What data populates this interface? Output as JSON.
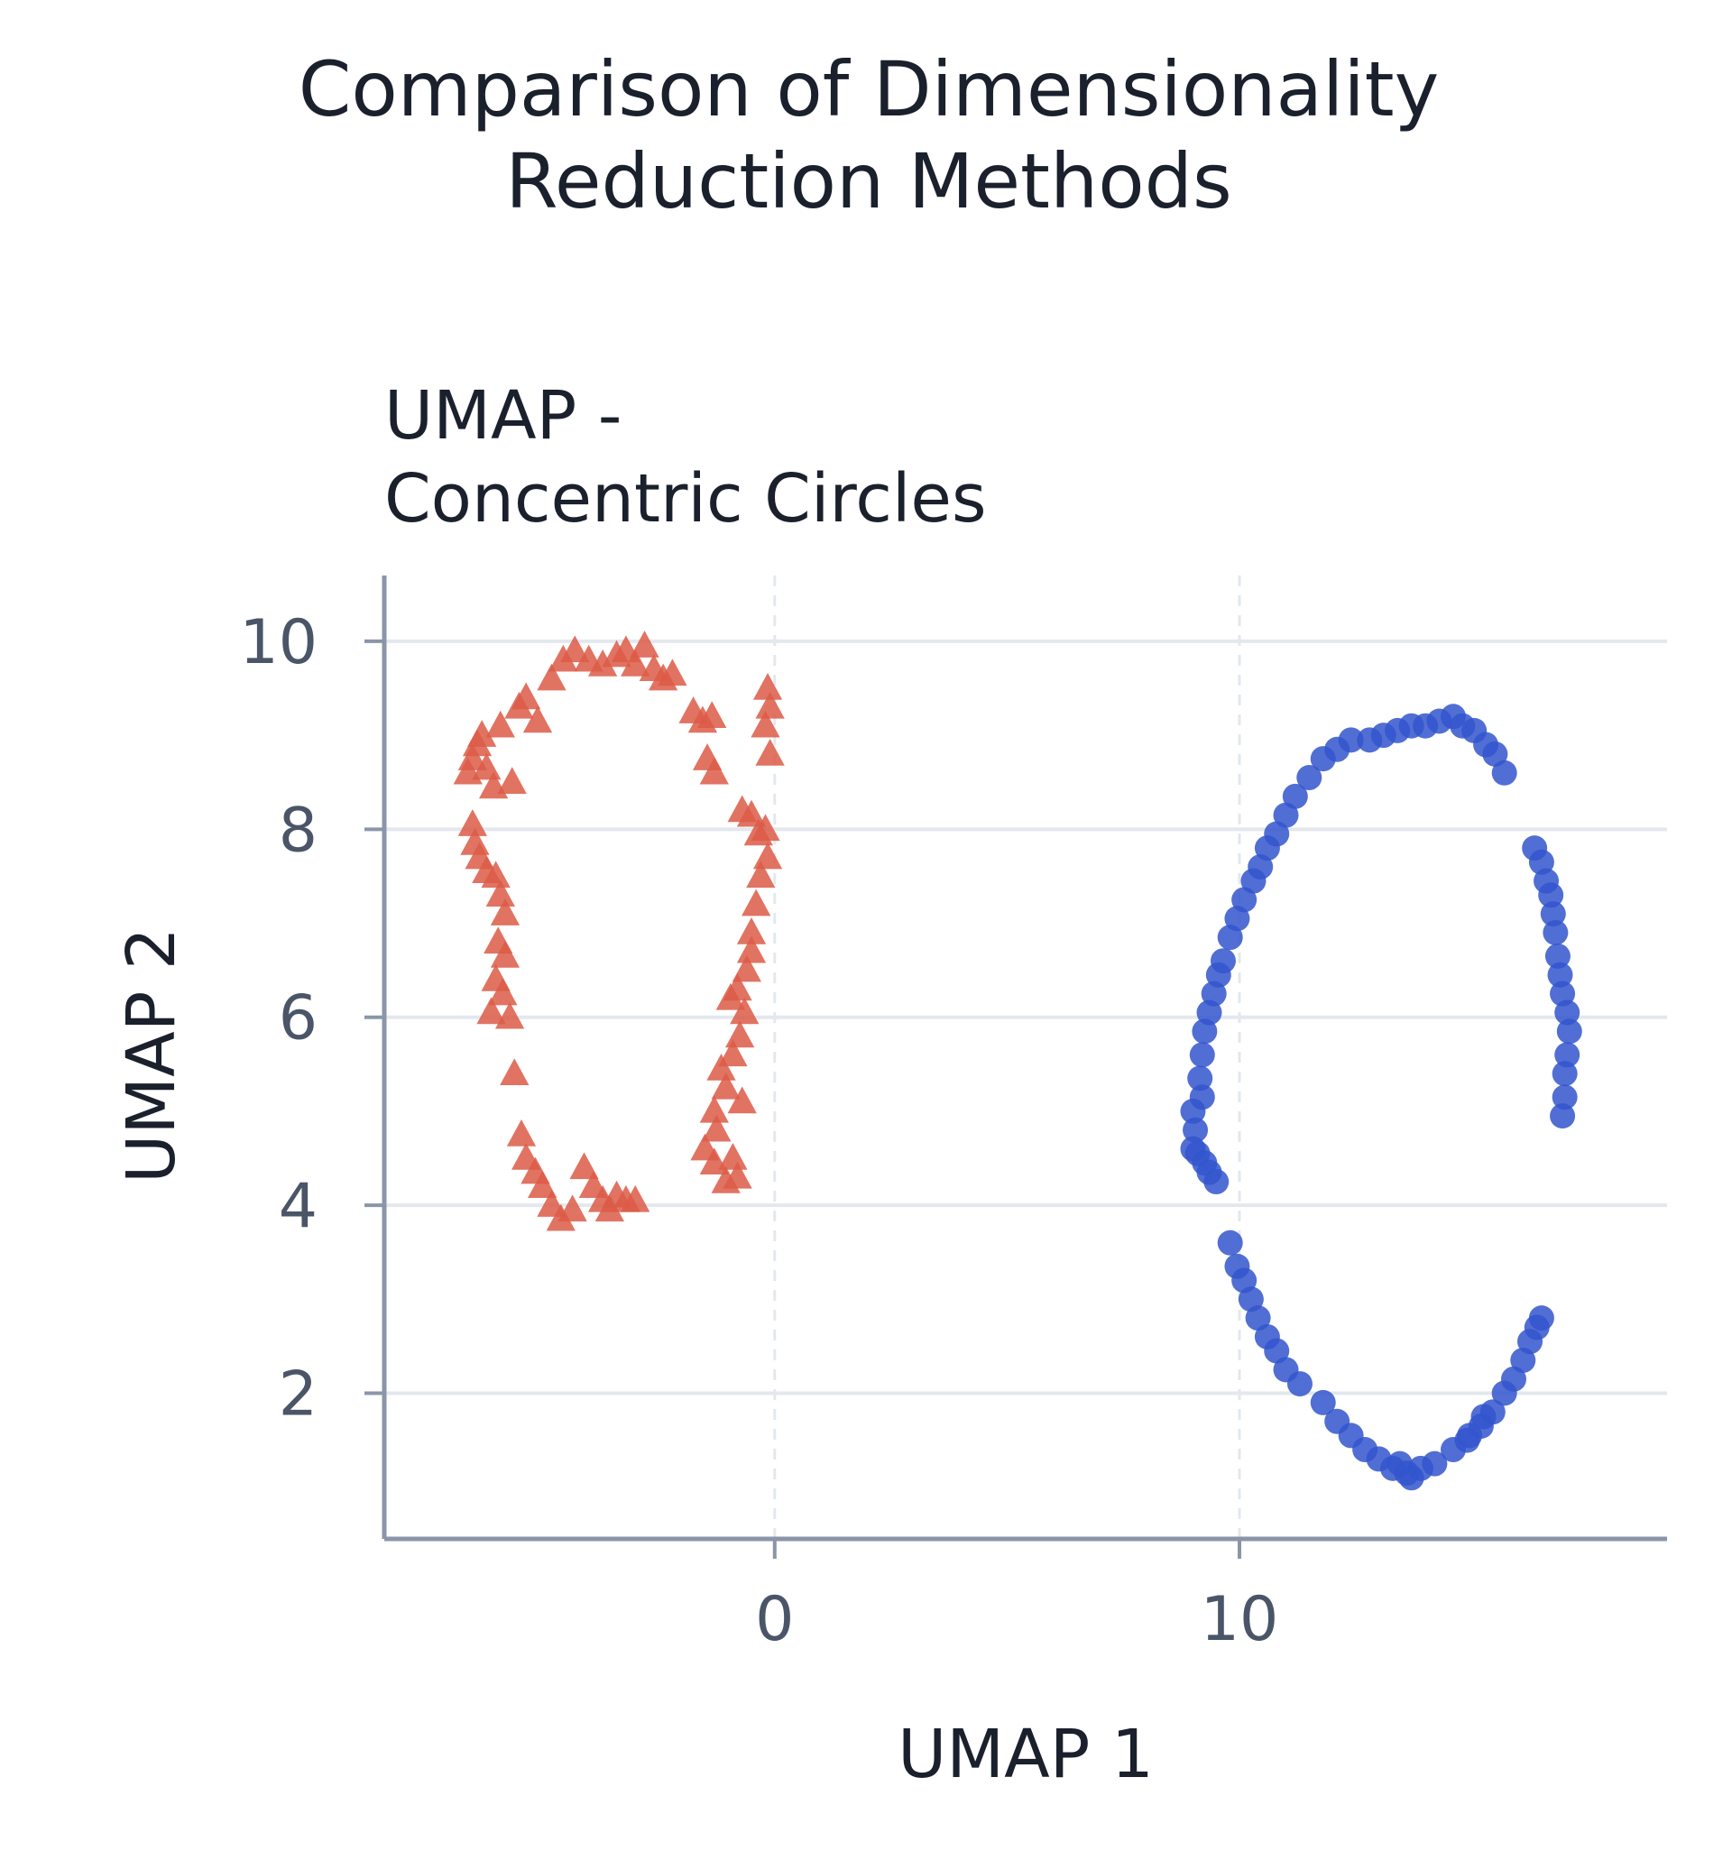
{
  "figure": {
    "suptitle": "Comparison of Dimensionality Reduction Methods",
    "suptitle_lines": [
      "Comparison of Dimensionality",
      "Reduction Methods"
    ]
  },
  "chart_data": {
    "type": "scatter",
    "title": "UMAP - Concentric Circles",
    "title_lines": [
      "UMAP -",
      "Concentric Circles"
    ],
    "xlabel": "UMAP 1",
    "ylabel": "UMAP 2",
    "xlim": [
      -8.4,
      19.2
    ],
    "ylim": [
      0.45,
      10.7
    ],
    "xticks": [
      0,
      10
    ],
    "yticks": [
      2,
      4,
      6,
      8,
      10
    ],
    "grid": {
      "x": "dashed",
      "y": "solid"
    },
    "legend": "none",
    "colors": {
      "outer": "#dc5a46",
      "inner": "#3355cc",
      "axis": "#8a96a8",
      "grid": "#e3e8ee",
      "tick_text": "#4a5568",
      "title_text": "#1a202c"
    },
    "series": [
      {
        "marker": "triangle",
        "color": "#dc5a46",
        "points": [
          [
            -6.6,
            8.6
          ],
          [
            -6.5,
            8.75
          ],
          [
            -6.4,
            8.9
          ],
          [
            -6.3,
            9.0
          ],
          [
            -6.2,
            8.65
          ],
          [
            -6.05,
            8.45
          ],
          [
            -5.9,
            9.1
          ],
          [
            -5.65,
            8.5
          ],
          [
            -5.5,
            9.3
          ],
          [
            -5.35,
            9.4
          ],
          [
            -5.1,
            9.15
          ],
          [
            -4.8,
            9.6
          ],
          [
            -4.55,
            9.8
          ],
          [
            -4.3,
            9.9
          ],
          [
            -4.0,
            9.8
          ],
          [
            -3.7,
            9.75
          ],
          [
            -3.4,
            9.85
          ],
          [
            -3.2,
            9.9
          ],
          [
            -3.0,
            9.75
          ],
          [
            -2.8,
            9.95
          ],
          [
            -2.6,
            9.7
          ],
          [
            -2.4,
            9.6
          ],
          [
            -2.2,
            9.65
          ],
          [
            -1.75,
            9.25
          ],
          [
            -1.55,
            9.15
          ],
          [
            -1.35,
            9.2
          ],
          [
            -1.45,
            8.75
          ],
          [
            -1.3,
            8.6
          ],
          [
            -0.15,
            9.5
          ],
          [
            -0.1,
            9.3
          ],
          [
            -0.2,
            9.1
          ],
          [
            -0.1,
            8.8
          ],
          [
            -0.7,
            8.2
          ],
          [
            -0.5,
            8.15
          ],
          [
            -0.35,
            7.95
          ],
          [
            -0.2,
            8.0
          ],
          [
            -0.15,
            7.7
          ],
          [
            -0.3,
            7.5
          ],
          [
            -0.4,
            7.2
          ],
          [
            -0.5,
            6.9
          ],
          [
            -0.5,
            6.7
          ],
          [
            -0.6,
            6.5
          ],
          [
            -0.8,
            6.3
          ],
          [
            -0.95,
            6.2
          ],
          [
            -0.65,
            6.05
          ],
          [
            -0.75,
            5.8
          ],
          [
            -0.9,
            5.6
          ],
          [
            -1.15,
            5.45
          ],
          [
            -1.05,
            5.25
          ],
          [
            -0.7,
            5.1
          ],
          [
            -1.3,
            5.0
          ],
          [
            -1.25,
            4.8
          ],
          [
            -1.5,
            4.6
          ],
          [
            -1.3,
            4.45
          ],
          [
            -0.9,
            4.5
          ],
          [
            -1.05,
            4.25
          ],
          [
            -0.8,
            4.3
          ],
          [
            -6.5,
            8.05
          ],
          [
            -6.45,
            7.85
          ],
          [
            -6.35,
            7.7
          ],
          [
            -6.2,
            7.55
          ],
          [
            -6.0,
            7.5
          ],
          [
            -5.9,
            7.3
          ],
          [
            -5.8,
            7.1
          ],
          [
            -5.95,
            6.8
          ],
          [
            -5.8,
            6.65
          ],
          [
            -6.0,
            6.4
          ],
          [
            -5.85,
            6.25
          ],
          [
            -6.1,
            6.05
          ],
          [
            -5.7,
            6.0
          ],
          [
            -5.6,
            5.4
          ],
          [
            -5.45,
            4.75
          ],
          [
            -5.35,
            4.5
          ],
          [
            -5.15,
            4.35
          ],
          [
            -5.0,
            4.2
          ],
          [
            -4.8,
            4.0
          ],
          [
            -4.6,
            3.85
          ],
          [
            -4.35,
            3.95
          ],
          [
            -4.1,
            4.4
          ],
          [
            -3.9,
            4.2
          ],
          [
            -3.7,
            4.05
          ],
          [
            -3.55,
            3.95
          ],
          [
            -3.4,
            4.1
          ],
          [
            -3.2,
            4.05
          ],
          [
            -3.0,
            4.05
          ]
        ]
      },
      {
        "marker": "circle",
        "color": "#3355cc",
        "points": [
          [
            11.8,
            8.75
          ],
          [
            12.1,
            8.85
          ],
          [
            12.4,
            8.95
          ],
          [
            12.8,
            8.95
          ],
          [
            13.1,
            9.0
          ],
          [
            13.4,
            9.05
          ],
          [
            13.7,
            9.1
          ],
          [
            14.0,
            9.1
          ],
          [
            14.3,
            9.15
          ],
          [
            14.6,
            9.2
          ],
          [
            14.8,
            9.1
          ],
          [
            15.05,
            9.05
          ],
          [
            15.3,
            8.9
          ],
          [
            15.5,
            8.8
          ],
          [
            15.7,
            8.6
          ],
          [
            11.5,
            8.55
          ],
          [
            11.2,
            8.35
          ],
          [
            11.0,
            8.15
          ],
          [
            10.8,
            7.95
          ],
          [
            10.6,
            7.8
          ],
          [
            10.45,
            7.6
          ],
          [
            10.3,
            7.45
          ],
          [
            10.1,
            7.25
          ],
          [
            9.95,
            7.05
          ],
          [
            9.8,
            6.85
          ],
          [
            9.65,
            6.6
          ],
          [
            9.55,
            6.45
          ],
          [
            9.45,
            6.25
          ],
          [
            9.35,
            6.05
          ],
          [
            9.25,
            5.85
          ],
          [
            9.2,
            5.6
          ],
          [
            9.15,
            5.35
          ],
          [
            9.2,
            5.15
          ],
          [
            9.0,
            5.0
          ],
          [
            9.05,
            4.8
          ],
          [
            9.1,
            4.55
          ],
          [
            9.25,
            4.45
          ],
          [
            9.35,
            4.35
          ],
          [
            9.5,
            4.25
          ],
          [
            9.0,
            4.6
          ],
          [
            16.35,
            7.8
          ],
          [
            16.5,
            7.65
          ],
          [
            16.6,
            7.45
          ],
          [
            16.7,
            7.3
          ],
          [
            16.75,
            7.1
          ],
          [
            16.8,
            6.9
          ],
          [
            16.85,
            6.65
          ],
          [
            16.9,
            6.45
          ],
          [
            16.95,
            6.25
          ],
          [
            17.05,
            6.05
          ],
          [
            17.1,
            5.85
          ],
          [
            17.05,
            5.6
          ],
          [
            17.0,
            5.4
          ],
          [
            17.0,
            5.15
          ],
          [
            16.95,
            4.95
          ],
          [
            9.8,
            3.6
          ],
          [
            9.95,
            3.35
          ],
          [
            10.1,
            3.2
          ],
          [
            10.25,
            3.0
          ],
          [
            10.4,
            2.8
          ],
          [
            10.6,
            2.6
          ],
          [
            10.8,
            2.45
          ],
          [
            11.0,
            2.25
          ],
          [
            11.3,
            2.1
          ],
          [
            11.8,
            1.9
          ],
          [
            12.1,
            1.7
          ],
          [
            12.4,
            1.55
          ],
          [
            12.7,
            1.4
          ],
          [
            13.0,
            1.3
          ],
          [
            13.3,
            1.2
          ],
          [
            13.6,
            1.15
          ],
          [
            13.9,
            1.2
          ],
          [
            14.2,
            1.25
          ],
          [
            14.6,
            1.4
          ],
          [
            14.9,
            1.5
          ],
          [
            15.2,
            1.65
          ],
          [
            15.45,
            1.8
          ],
          [
            15.7,
            2.0
          ],
          [
            15.9,
            2.15
          ],
          [
            16.1,
            2.35
          ],
          [
            16.25,
            2.55
          ],
          [
            16.4,
            2.7
          ],
          [
            16.5,
            2.8
          ],
          [
            13.7,
            1.1
          ],
          [
            13.45,
            1.25
          ],
          [
            14.95,
            1.55
          ],
          [
            15.25,
            1.75
          ]
        ]
      }
    ]
  }
}
